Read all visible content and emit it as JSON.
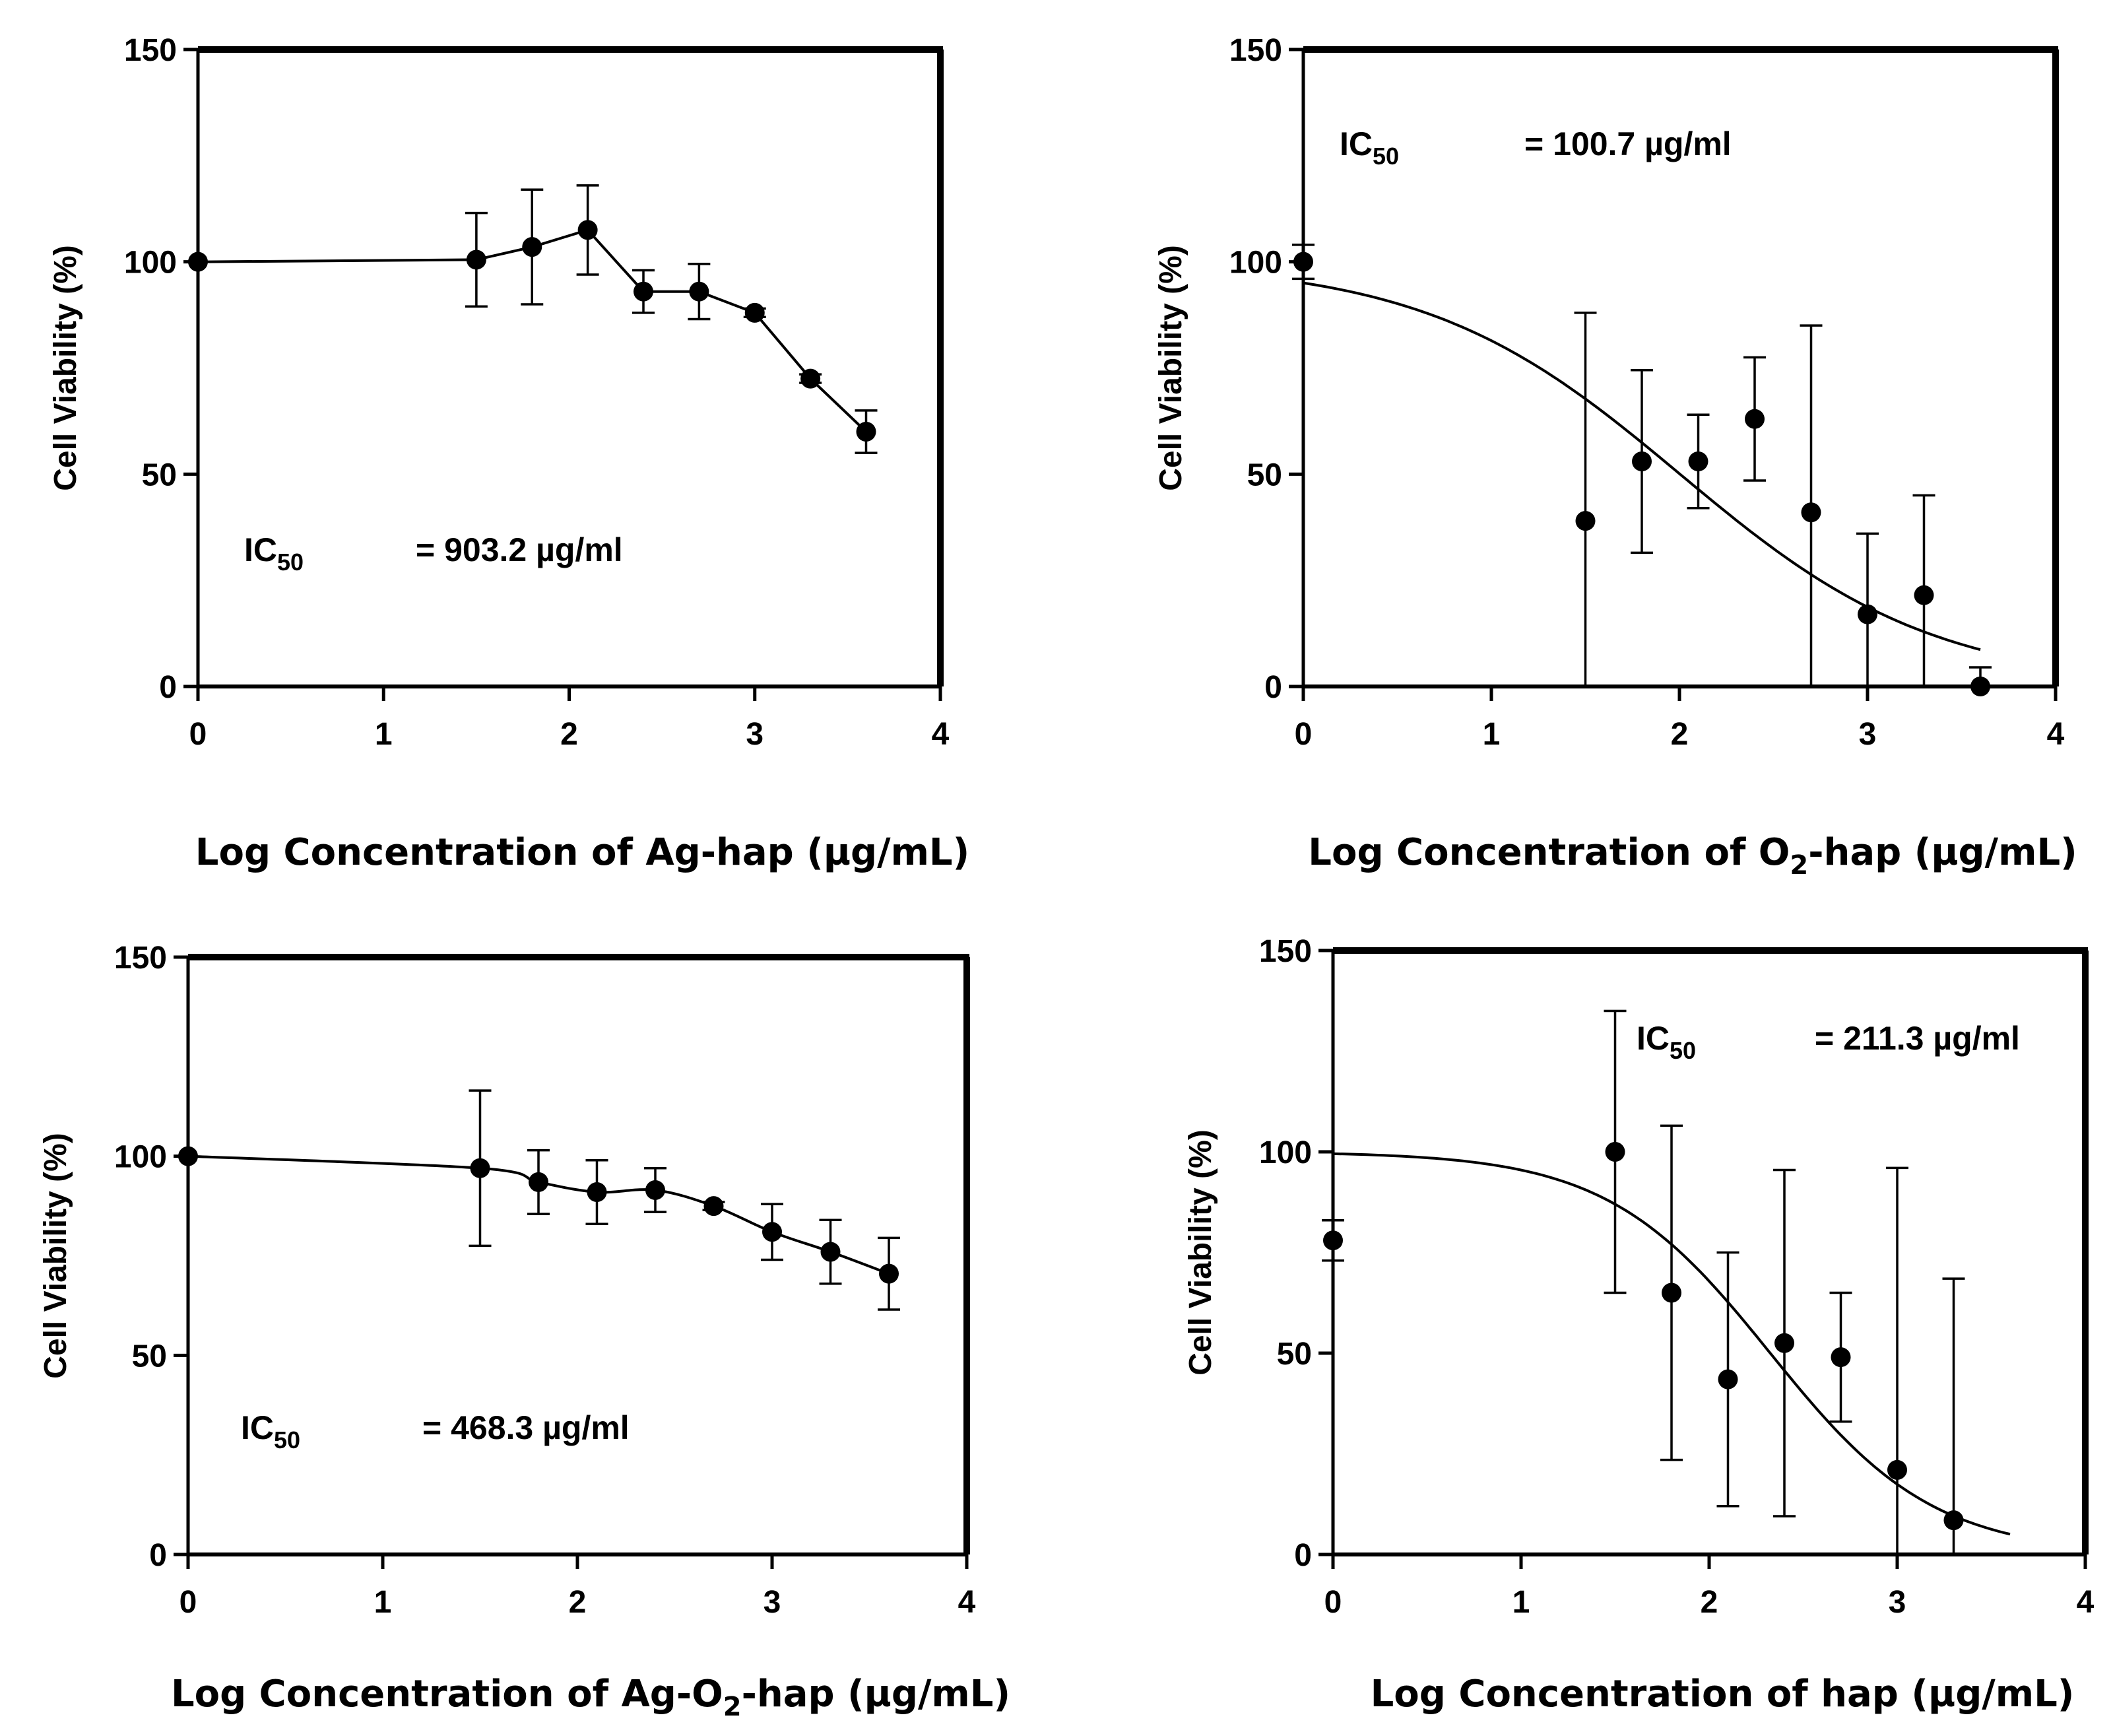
{
  "figure": {
    "background": "#ffffff",
    "ink": "#000000"
  },
  "chart_data": [
    {
      "type": "scatter",
      "id": "ag-hap",
      "ylabel": "Cell Viability (%)",
      "xlabel": {
        "prefix": "Log Concentration of Ag-hap (",
        "unit": "µg/mL)"
      },
      "ic50": {
        "label": "IC",
        "sub": "50",
        "value": "= 903.2 µg/ml"
      },
      "xlim": [
        0,
        4
      ],
      "ylim": [
        0,
        150
      ],
      "xticks": [
        "0",
        "1",
        "2",
        "3",
        "4"
      ],
      "yticks": [
        "0",
        "50",
        "100",
        "150"
      ],
      "points": [
        {
          "x": 0,
          "y": 100
        },
        {
          "x": 1.5,
          "y": 100.5,
          "err": 11
        },
        {
          "x": 1.8,
          "y": 103.5,
          "err": 13.5
        },
        {
          "x": 2.1,
          "y": 107.5,
          "err": 10.5
        },
        {
          "x": 2.4,
          "y": 93,
          "err": 5
        },
        {
          "x": 2.7,
          "y": 93,
          "err": 6.5
        },
        {
          "x": 3.0,
          "y": 88,
          "err": 1
        },
        {
          "x": 3.3,
          "y": 72.5,
          "err": 1
        },
        {
          "x": 3.6,
          "y": 60,
          "err": 5
        }
      ],
      "fit": {
        "kind": "connect"
      }
    },
    {
      "type": "scatter",
      "id": "o2-hap",
      "ylabel": "Cell Viability (%)",
      "xlabel": {
        "prefix": "Log Concentration of O",
        "sub": "2",
        "middle": "-hap (",
        "unit": "µg/mL)"
      },
      "ic50": {
        "label": "IC",
        "sub": "50",
        "value": "= 100.7 µg/ml"
      },
      "xlim": [
        0,
        4
      ],
      "ylim": [
        0,
        150
      ],
      "xticks": [
        "0",
        "1",
        "2",
        "3",
        "4"
      ],
      "yticks": [
        "0",
        "50",
        "100",
        "150"
      ],
      "points": [
        {
          "x": 0,
          "y": 100,
          "err": 4
        },
        {
          "x": 1.5,
          "y": 39,
          "err": 49
        },
        {
          "x": 1.8,
          "y": 53,
          "err": 21.5
        },
        {
          "x": 2.1,
          "y": 53,
          "err": 11
        },
        {
          "x": 2.4,
          "y": 63,
          "err": 14.5
        },
        {
          "x": 2.7,
          "y": 41,
          "err": 44
        },
        {
          "x": 3.0,
          "y": 17,
          "err": 19
        },
        {
          "x": 3.3,
          "y": 21.5,
          "err": 23.5
        },
        {
          "x": 3.6,
          "y": 0,
          "err": 4.5
        }
      ],
      "fit": {
        "kind": "hill",
        "top": 100,
        "bottom": 0,
        "logIC50": 2.003,
        "hill": 0.64,
        "xmin": 0,
        "xmax": 3.6
      }
    },
    {
      "type": "scatter",
      "id": "ag-o2-hap",
      "ylabel": "Cell Viability (%)",
      "xlabel": {
        "prefix": "Log Concentration of Ag-O",
        "sub": "2",
        "middle": "-hap (",
        "unit": "µg/mL)"
      },
      "ic50": {
        "label": "IC",
        "sub": "50",
        "value": "= 468.3 µg/ml"
      },
      "xlim": [
        0,
        4
      ],
      "ylim": [
        0,
        150
      ],
      "xticks": [
        "0",
        "1",
        "2",
        "3",
        "4"
      ],
      "yticks": [
        "0",
        "50",
        "100",
        "150"
      ],
      "points": [
        {
          "x": 0,
          "y": 100
        },
        {
          "x": 1.5,
          "y": 97,
          "err": 19.5
        },
        {
          "x": 1.8,
          "y": 93.5,
          "err": 8
        },
        {
          "x": 2.1,
          "y": 91,
          "err": 8
        },
        {
          "x": 2.4,
          "y": 91.5,
          "err": 5.5
        },
        {
          "x": 2.7,
          "y": 87.5,
          "err": 1
        },
        {
          "x": 3.0,
          "y": 81,
          "err": 7
        },
        {
          "x": 3.3,
          "y": 76,
          "err": 8
        },
        {
          "x": 3.6,
          "y": 70.5,
          "err": 9
        }
      ],
      "fit": {
        "kind": "smooth"
      }
    },
    {
      "type": "scatter",
      "id": "hap",
      "ylabel": "Cell Viability (%)",
      "xlabel": {
        "prefix": "Log Concentration of hap (",
        "unit": "µg/mL)"
      },
      "ic50": {
        "label": "IC",
        "sub": "50",
        "value": "= 211.3 µg/ml"
      },
      "xlim": [
        0,
        4
      ],
      "ylim": [
        0,
        150
      ],
      "xticks": [
        "0",
        "1",
        "2",
        "3",
        "4"
      ],
      "yticks": [
        "0",
        "50",
        "100",
        "150"
      ],
      "points": [
        {
          "x": 0,
          "y": 78,
          "err": 5
        },
        {
          "x": 1.5,
          "y": 100,
          "err": 35
        },
        {
          "x": 1.8,
          "y": 65,
          "err": 41.5
        },
        {
          "x": 2.1,
          "y": 43.5,
          "err": 31.5
        },
        {
          "x": 2.4,
          "y": 52.5,
          "err": 43
        },
        {
          "x": 2.7,
          "y": 49,
          "err": 16
        },
        {
          "x": 3.0,
          "y": 21,
          "err": 75
        },
        {
          "x": 3.3,
          "y": 8.5,
          "err": 60
        }
      ],
      "fit": {
        "kind": "hill",
        "top": 100,
        "bottom": 0,
        "logIC50": 2.325,
        "hill": 1.0,
        "xmin": 0,
        "xmax": 3.6
      }
    }
  ]
}
